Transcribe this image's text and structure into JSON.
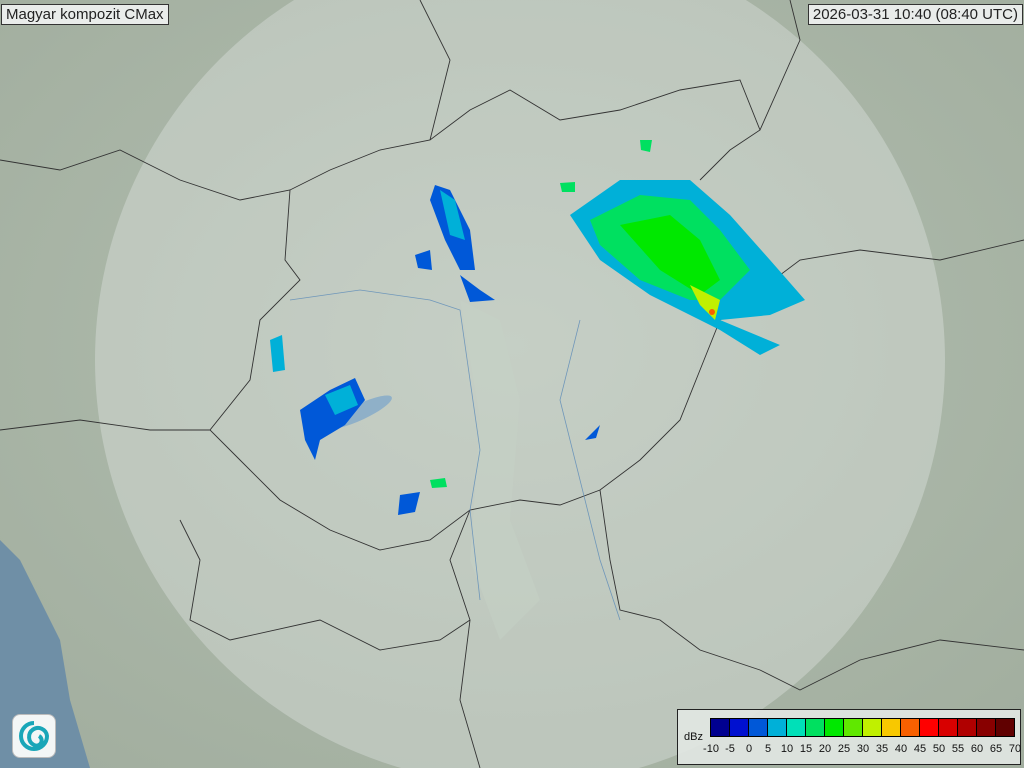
{
  "header": {
    "title": "Magyar kompozit  CMax",
    "timestamp": "2026-03-31 10:40 (08:40 UTC)"
  },
  "legend": {
    "unit": "dBz",
    "ticks": [
      "-10",
      "-5",
      "0",
      "5",
      "10",
      "15",
      "20",
      "25",
      "30",
      "35",
      "40",
      "45",
      "50",
      "55",
      "60",
      "65",
      "70"
    ],
    "colors": [
      "#000090",
      "#0010d0",
      "#0058d8",
      "#00b0d8",
      "#00e0b8",
      "#00e060",
      "#00e800",
      "#60e800",
      "#c0f000",
      "#f8c800",
      "#f86000",
      "#ff0000",
      "#d80000",
      "#b00000",
      "#880000",
      "#600000"
    ]
  },
  "logo": {
    "icon": "met-service-swirl-logo"
  }
}
